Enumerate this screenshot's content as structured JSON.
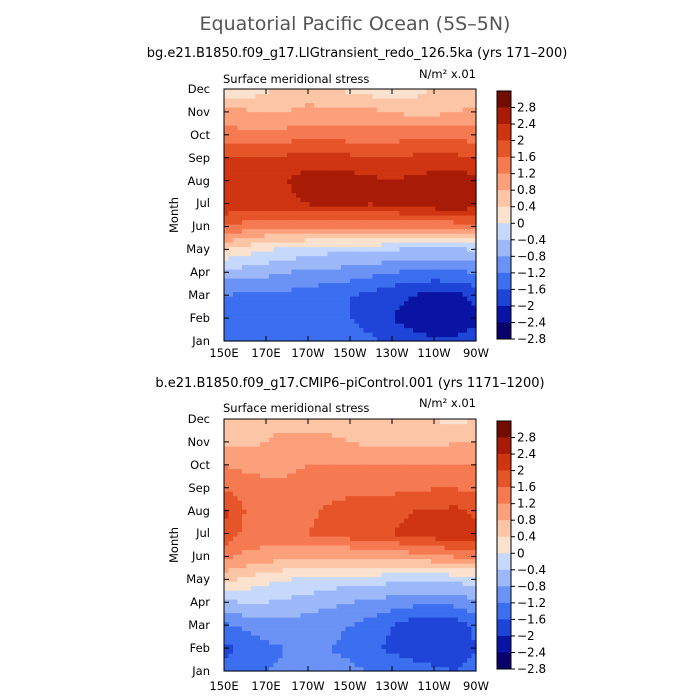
{
  "main_title": "Equatorial Pacific Ocean (5S–5N)",
  "colorbar_levels": [
    "2.8",
    "2.4",
    "2",
    "1.6",
    "1.2",
    "0.8",
    "0.4",
    "0",
    "−0.4",
    "−0.8",
    "−1.2",
    "−1.6",
    "−2",
    "−2.4",
    "−2.8"
  ],
  "colors": {
    "palette": [
      "#08006b",
      "#0a14a4",
      "#1f44d8",
      "#3b6ff0",
      "#6b93f5",
      "#9cb8f8",
      "#c6d8fb",
      "#fbe2cf",
      "#fcc5a6",
      "#fca07c",
      "#f57a52",
      "#e65529",
      "#cf3511",
      "#a81b06",
      "#720c00"
    ]
  },
  "chart_data": [
    {
      "type": "heatmap",
      "subtitle": "bg.e21.B1850.f09_g17.LIGtransient_redo_126.5ka (yrs 171–200)",
      "variable": "Surface meridional stress",
      "units": "N/m² x.01",
      "ylabel": "Month",
      "x_ticks": [
        "150E",
        "170E",
        "170W",
        "150W",
        "130W",
        "110W",
        "90W"
      ],
      "y_ticks": [
        "Jan",
        "Feb",
        "Mar",
        "Apr",
        "May",
        "Jun",
        "Jul",
        "Aug",
        "Sep",
        "Oct",
        "Nov",
        "Dec"
      ],
      "x_range": [
        "150E",
        "90W"
      ],
      "y_range": [
        "Jan",
        "Dec"
      ],
      "levels": [
        -2.8,
        -2.4,
        -2,
        -1.6,
        -1.2,
        -0.8,
        -0.4,
        0,
        0.4,
        0.8,
        1.2,
        1.6,
        2,
        2.4,
        2.8
      ],
      "x_lon": [
        150,
        160,
        170,
        180,
        190,
        200,
        210,
        220,
        230,
        240,
        250,
        260,
        270
      ],
      "z": [
        [
          -1.8,
          -2.0,
          -1.8,
          -1.7,
          -1.7,
          -1.7,
          -1.8,
          -1.9,
          -2.1,
          -2.2,
          -2.3,
          -2.3,
          -2.1
        ],
        [
          -2.0,
          -2.0,
          -1.9,
          -1.9,
          -1.9,
          -2.0,
          -2.0,
          -2.2,
          -2.4,
          -2.6,
          -2.8,
          -2.8,
          -2.5
        ],
        [
          -1.6,
          -1.7,
          -1.7,
          -1.7,
          -1.8,
          -1.9,
          -2.0,
          -2.1,
          -2.3,
          -2.4,
          -2.6,
          -2.5,
          -2.3
        ],
        [
          -1.0,
          -1.0,
          -1.1,
          -1.2,
          -1.3,
          -1.3,
          -1.4,
          -1.5,
          -1.6,
          -1.7,
          -1.7,
          -1.7,
          -1.6
        ],
        [
          0.0,
          -0.2,
          -0.4,
          -0.5,
          -0.6,
          -0.7,
          -0.7,
          -0.7,
          -0.8,
          -0.9,
          -0.9,
          -0.9,
          -0.8
        ],
        [
          1.2,
          1.0,
          0.9,
          0.8,
          0.8,
          0.8,
          0.8,
          0.8,
          0.8,
          0.8,
          0.8,
          0.9,
          1.0
        ],
        [
          1.9,
          1.8,
          1.8,
          1.9,
          2.0,
          2.1,
          2.1,
          2.0,
          2.1,
          2.2,
          2.3,
          2.4,
          2.2
        ],
        [
          2.0,
          1.9,
          1.8,
          2.0,
          2.2,
          2.2,
          2.2,
          2.1,
          2.0,
          2.1,
          2.2,
          2.3,
          2.1
        ],
        [
          1.7,
          1.6,
          1.6,
          1.7,
          1.8,
          1.8,
          1.7,
          1.6,
          1.6,
          1.7,
          1.7,
          1.7,
          1.6
        ],
        [
          1.0,
          0.9,
          0.9,
          1.0,
          1.1,
          1.1,
          1.0,
          1.0,
          1.0,
          1.1,
          1.1,
          1.1,
          1.0
        ],
        [
          0.6,
          0.5,
          0.4,
          0.4,
          0.5,
          0.5,
          0.5,
          0.5,
          0.4,
          0.3,
          0.3,
          0.4,
          0.5
        ],
        [
          -0.4,
          -0.3,
          -0.1,
          0.2,
          0.2,
          0.1,
          -0.1,
          -0.2,
          -0.3,
          -0.2,
          0.1,
          0.2,
          0.1
        ]
      ]
    },
    {
      "type": "heatmap",
      "subtitle": "b.e21.B1850.f09_g17.CMIP6–piControl.001 (yrs 1171–1200)",
      "variable": "Surface meridional stress",
      "units": "N/m² x.01",
      "ylabel": "Month",
      "x_ticks": [
        "150E",
        "170E",
        "170W",
        "150W",
        "130W",
        "110W",
        "90W"
      ],
      "y_ticks": [
        "Jan",
        "Feb",
        "Mar",
        "Apr",
        "May",
        "Jun",
        "Jul",
        "Aug",
        "Sep",
        "Oct",
        "Nov",
        "Dec"
      ],
      "x_range": [
        "150E",
        "90W"
      ],
      "y_range": [
        "Jan",
        "Dec"
      ],
      "levels": [
        -2.8,
        -2.4,
        -2,
        -1.6,
        -1.2,
        -0.8,
        -0.4,
        0,
        0.4,
        0.8,
        1.2,
        1.6,
        2,
        2.4,
        2.8
      ],
      "x_lon": [
        150,
        160,
        170,
        180,
        190,
        200,
        210,
        220,
        230,
        240,
        250,
        260,
        270
      ],
      "z": [
        [
          -1.9,
          -1.8,
          -1.6,
          -1.5,
          -1.4,
          -1.4,
          -1.5,
          -1.6,
          -1.7,
          -1.8,
          -1.9,
          -2.0,
          -1.8
        ],
        [
          -2.1,
          -1.9,
          -1.7,
          -1.6,
          -1.6,
          -1.6,
          -1.7,
          -1.9,
          -2.1,
          -2.2,
          -2.3,
          -2.3,
          -2.0
        ],
        [
          -1.7,
          -1.5,
          -1.4,
          -1.4,
          -1.4,
          -1.5,
          -1.6,
          -1.8,
          -2.0,
          -2.2,
          -2.3,
          -2.2,
          -1.9
        ],
        [
          -0.9,
          -0.8,
          -0.8,
          -0.9,
          -1.0,
          -1.1,
          -1.2,
          -1.3,
          -1.4,
          -1.5,
          -1.5,
          -1.5,
          -1.3
        ],
        [
          0.1,
          -0.1,
          -0.3,
          -0.4,
          -0.5,
          -0.6,
          -0.6,
          -0.6,
          -0.7,
          -0.8,
          -0.8,
          -0.7,
          -0.6
        ],
        [
          0.9,
          0.7,
          0.6,
          0.5,
          0.4,
          0.4,
          0.4,
          0.4,
          0.5,
          0.6,
          0.7,
          0.8,
          0.8
        ],
        [
          1.5,
          1.1,
          1.0,
          1.1,
          1.2,
          1.3,
          1.4,
          1.5,
          1.6,
          1.7,
          1.8,
          2.0,
          1.8
        ],
        [
          1.7,
          1.2,
          1.0,
          1.0,
          1.1,
          1.3,
          1.4,
          1.5,
          1.5,
          1.6,
          1.6,
          1.7,
          1.5
        ],
        [
          1.2,
          1.0,
          0.9,
          0.9,
          1.0,
          1.0,
          1.1,
          1.1,
          1.1,
          1.1,
          1.2,
          1.2,
          1.1
        ],
        [
          0.8,
          0.7,
          0.7,
          0.7,
          0.8,
          0.8,
          0.8,
          0.8,
          0.8,
          0.8,
          0.8,
          0.8,
          0.8
        ],
        [
          0.3,
          0.3,
          0.4,
          0.5,
          0.5,
          0.5,
          0.4,
          0.3,
          0.3,
          0.3,
          0.3,
          0.4,
          0.4
        ],
        [
          0.1,
          0.2,
          0.3,
          0.3,
          0.2,
          0.2,
          0.2,
          0.1,
          0.1,
          0.1,
          0.0,
          -0.1,
          0.0
        ]
      ]
    }
  ]
}
